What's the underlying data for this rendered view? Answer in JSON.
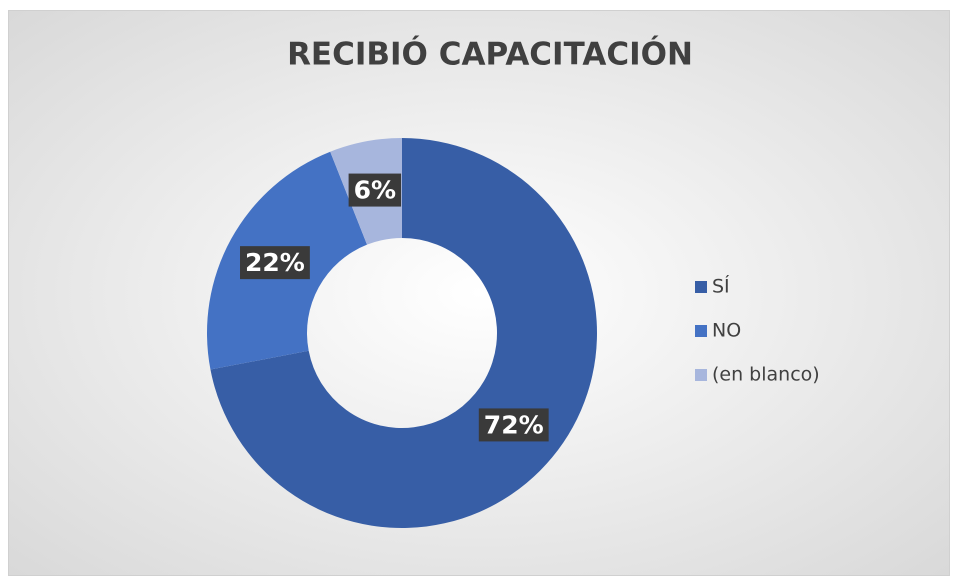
{
  "chart_data": {
    "type": "donut",
    "title": "RECIBIÓ CAPACITACIÓN",
    "categories": [
      "SÍ",
      "NO",
      "(en blanco)"
    ],
    "values": [
      72,
      22,
      6
    ],
    "value_labels": [
      "72%",
      "22%",
      "6%"
    ],
    "colors": [
      "#375ea6",
      "#4472c4",
      "#a7b6dd"
    ],
    "legend": "right"
  }
}
